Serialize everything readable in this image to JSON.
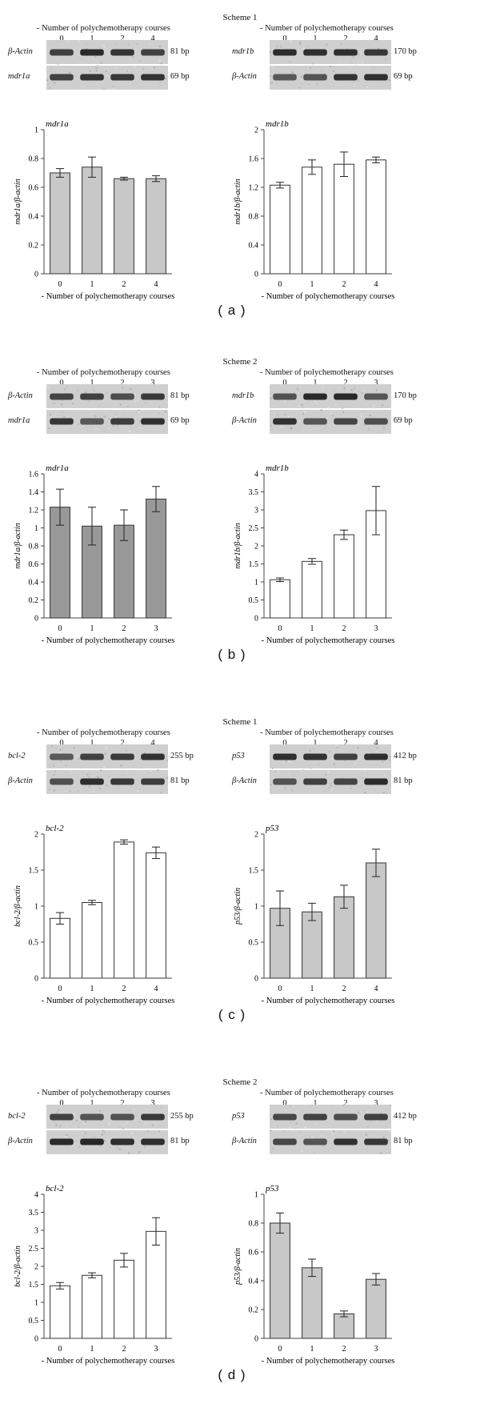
{
  "panels": [
    {
      "scheme": "Scheme 1",
      "label": "( a )",
      "gels": [
        {
          "header": "- Number of polychemotherapy courses",
          "lanes": [
            "0",
            "1",
            "2",
            "4"
          ],
          "rows": [
            {
              "name": "β-Actin",
              "bp": "81 bp"
            },
            {
              "name": "mdr1a",
              "bp": "69 bp"
            }
          ]
        },
        {
          "header": "- Number of polychemotherapy courses",
          "lanes": [
            "0",
            "1",
            "2",
            "4"
          ],
          "rows": [
            {
              "name": "mdr1b",
              "bp": "170 bp"
            },
            {
              "name": "β-Actin",
              "bp": "69 bp"
            }
          ]
        }
      ]
    },
    {
      "scheme": "Scheme 2",
      "label": "( b )",
      "gels": [
        {
          "header": "- Number of polychemotherapy courses",
          "lanes": [
            "0",
            "1",
            "2",
            "3"
          ],
          "rows": [
            {
              "name": "β-Actin",
              "bp": "81 bp"
            },
            {
              "name": "mdr1a",
              "bp": "69 bp"
            }
          ]
        },
        {
          "header": "- Number of polychemotherapy courses",
          "lanes": [
            "0",
            "1",
            "2",
            "3"
          ],
          "rows": [
            {
              "name": "mdr1b",
              "bp": "170 bp"
            },
            {
              "name": "β-Actin",
              "bp": "69 bp"
            }
          ]
        }
      ]
    },
    {
      "scheme": "Scheme 1",
      "label": "( c )",
      "gels": [
        {
          "header": "- Number of polychemotherapy courses",
          "lanes": [
            "0",
            "1",
            "2",
            "4"
          ],
          "rows": [
            {
              "name": "bcl-2",
              "bp": "255 bp"
            },
            {
              "name": "β-Actin",
              "bp": "81 bp"
            }
          ]
        },
        {
          "header": "- Number of polychemotherapy courses",
          "lanes": [
            "0",
            "1",
            "2",
            "4"
          ],
          "rows": [
            {
              "name": "p53",
              "bp": "412 bp"
            },
            {
              "name": "β-Actin",
              "bp": "81 bp"
            }
          ]
        }
      ]
    },
    {
      "scheme": "Scheme 2",
      "label": "( d )",
      "gels": [
        {
          "header": "- Number of polychemotherapy courses",
          "lanes": [
            "0",
            "1",
            "2",
            "3"
          ],
          "rows": [
            {
              "name": "bcl-2",
              "bp": "255 bp"
            },
            {
              "name": "β-Actin",
              "bp": "81 bp"
            }
          ]
        },
        {
          "header": "- Number of polychemotherapy courses",
          "lanes": [
            "0",
            "1",
            "2",
            "3"
          ],
          "rows": [
            {
              "name": "p53",
              "bp": "412 bp"
            },
            {
              "name": "β-Actin",
              "bp": "81 bp"
            }
          ]
        }
      ]
    }
  ],
  "chart_data": [
    {
      "type": "bar",
      "title": "mdr1a",
      "ylabel": "mdr1a/β-actin",
      "xlabel": "- Number of polychemotherapy courses",
      "categories": [
        "0",
        "1",
        "2",
        "4"
      ],
      "values": [
        0.7,
        0.74,
        0.66,
        0.66
      ],
      "errors": [
        0.03,
        0.07,
        0.01,
        0.02
      ],
      "ylim": [
        0,
        1
      ],
      "yticks": [
        "0",
        "0.2",
        "0.4",
        "0.6",
        "0.8",
        "1"
      ],
      "bar_color": "#c8c8c8"
    },
    {
      "type": "bar",
      "title": "mdr1b",
      "ylabel": "mdr1b/β-actin",
      "xlabel": "- Number of polychemotherapy courses",
      "categories": [
        "0",
        "1",
        "2",
        "4"
      ],
      "values": [
        1.23,
        1.48,
        1.52,
        1.58
      ],
      "errors": [
        0.04,
        0.1,
        0.17,
        0.04
      ],
      "ylim": [
        0,
        2
      ],
      "yticks": [
        "0",
        "0.4",
        "0.8",
        "1.2",
        "1.6",
        "2"
      ],
      "bar_color": "#ffffff"
    },
    {
      "type": "bar",
      "title": "mdr1a",
      "ylabel": "mdr1a/β-actin",
      "xlabel": "- Number of polychemotherapy courses",
      "categories": [
        "0",
        "1",
        "2",
        "3"
      ],
      "values": [
        1.23,
        1.02,
        1.03,
        1.32
      ],
      "errors": [
        0.2,
        0.21,
        0.17,
        0.14
      ],
      "ylim": [
        0,
        1.6
      ],
      "yticks": [
        "0",
        "0.2",
        "0.4",
        "0.6",
        "0.8",
        "1",
        "1.2",
        "1.4",
        "1.6"
      ],
      "bar_color": "#999999"
    },
    {
      "type": "bar",
      "title": "mdr1b",
      "ylabel": "mdr1b/β-actin",
      "xlabel": "- Number of polychemotherapy courses",
      "categories": [
        "0",
        "1",
        "2",
        "3"
      ],
      "values": [
        1.06,
        1.57,
        2.31,
        2.98
      ],
      "errors": [
        0.05,
        0.08,
        0.13,
        0.67
      ],
      "ylim": [
        0,
        4
      ],
      "yticks": [
        "0",
        "0.5",
        "1",
        "1.5",
        "2",
        "2.5",
        "3",
        "3.5",
        "4"
      ],
      "bar_color": "#ffffff"
    },
    {
      "type": "bar",
      "title": "bcl-2",
      "ylabel": "bcl-2/β-actin",
      "xlabel": "- Number of polychemotherapy courses",
      "categories": [
        "0",
        "1",
        "2",
        "4"
      ],
      "values": [
        0.83,
        1.05,
        1.89,
        1.74
      ],
      "errors": [
        0.08,
        0.03,
        0.03,
        0.08
      ],
      "ylim": [
        0,
        2
      ],
      "yticks": [
        "0",
        "0.5",
        "1",
        "1.5",
        "2"
      ],
      "bar_color": "#ffffff"
    },
    {
      "type": "bar",
      "title": "p53",
      "ylabel": "p53/β-actin",
      "xlabel": "- Number of polychemotherapy courses",
      "categories": [
        "0",
        "1",
        "2",
        "4"
      ],
      "values": [
        0.97,
        0.92,
        1.13,
        1.6
      ],
      "errors": [
        0.24,
        0.12,
        0.16,
        0.19
      ],
      "ylim": [
        0,
        2
      ],
      "yticks": [
        "0",
        "0.5",
        "1",
        "1.5",
        "2"
      ],
      "bar_color": "#c8c8c8"
    },
    {
      "type": "bar",
      "title": "bcl-2",
      "ylabel": "bcl-2/β-actin",
      "xlabel": "- Number of polychemotherapy courses",
      "categories": [
        "0",
        "1",
        "2",
        "3"
      ],
      "values": [
        1.46,
        1.75,
        2.17,
        2.97
      ],
      "errors": [
        0.09,
        0.07,
        0.19,
        0.38
      ],
      "ylim": [
        0,
        4
      ],
      "yticks": [
        "0",
        "0.5",
        "1",
        "1.5",
        "2",
        "2.5",
        "3",
        "3.5",
        "4"
      ],
      "bar_color": "#ffffff"
    },
    {
      "type": "bar",
      "title": "p53",
      "ylabel": "p53/β-actin",
      "xlabel": "- Number of polychemotherapy courses",
      "categories": [
        "0",
        "1",
        "2",
        "3"
      ],
      "values": [
        0.8,
        0.49,
        0.17,
        0.41
      ],
      "errors": [
        0.07,
        0.06,
        0.02,
        0.04
      ],
      "ylim": [
        0,
        1
      ],
      "yticks": [
        "0",
        "0.2",
        "0.4",
        "0.6",
        "0.8",
        "1"
      ],
      "bar_color": "#c8c8c8"
    }
  ]
}
